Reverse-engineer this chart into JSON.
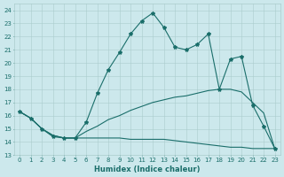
{
  "title": "",
  "xlabel": "Humidex (Indice chaleur)",
  "xlim": [
    -0.5,
    23.5
  ],
  "ylim": [
    13,
    24.5
  ],
  "yticks": [
    13,
    14,
    15,
    16,
    17,
    18,
    19,
    20,
    21,
    22,
    23,
    24
  ],
  "xticks": [
    0,
    1,
    2,
    3,
    4,
    5,
    6,
    7,
    8,
    9,
    10,
    11,
    12,
    13,
    14,
    15,
    16,
    17,
    18,
    19,
    20,
    21,
    22,
    23
  ],
  "bg_color": "#cce8ec",
  "line_color": "#1a6e6a",
  "grid_color": "#aacccc",
  "series": [
    {
      "x": [
        0,
        1,
        2,
        3,
        4,
        5,
        6,
        7,
        8,
        9,
        10,
        11,
        12,
        13,
        14,
        15,
        16,
        17,
        18,
        19,
        20,
        21,
        22,
        23
      ],
      "y": [
        16.3,
        15.8,
        15.0,
        14.4,
        14.3,
        14.3,
        15.5,
        17.7,
        19.5,
        20.8,
        22.2,
        23.2,
        23.8,
        22.7,
        21.2,
        21.0,
        21.4,
        22.2,
        18.0,
        20.3,
        20.5,
        16.8,
        15.2,
        13.5
      ],
      "marker": true
    },
    {
      "x": [
        0,
        1,
        2,
        3,
        4,
        5,
        6,
        7,
        8,
        9,
        10,
        11,
        12,
        13,
        14,
        15,
        16,
        17,
        18,
        19,
        20,
        21,
        22,
        23
      ],
      "y": [
        16.3,
        15.8,
        15.0,
        14.5,
        14.3,
        14.3,
        14.8,
        15.2,
        15.7,
        16.0,
        16.4,
        16.7,
        17.0,
        17.2,
        17.4,
        17.5,
        17.7,
        17.9,
        18.0,
        18.0,
        17.8,
        17.0,
        16.2,
        13.5
      ],
      "marker": false
    },
    {
      "x": [
        0,
        1,
        2,
        3,
        4,
        5,
        6,
        7,
        8,
        9,
        10,
        11,
        12,
        13,
        14,
        15,
        16,
        17,
        18,
        19,
        20,
        21,
        22,
        23
      ],
      "y": [
        16.3,
        15.8,
        15.0,
        14.5,
        14.3,
        14.3,
        14.3,
        14.3,
        14.3,
        14.3,
        14.2,
        14.2,
        14.2,
        14.2,
        14.1,
        14.0,
        13.9,
        13.8,
        13.7,
        13.6,
        13.6,
        13.5,
        13.5,
        13.5
      ],
      "marker": false
    }
  ],
  "xlabel_fontsize": 6,
  "tick_fontsize": 5,
  "linewidth": 0.8,
  "marker_size": 3
}
